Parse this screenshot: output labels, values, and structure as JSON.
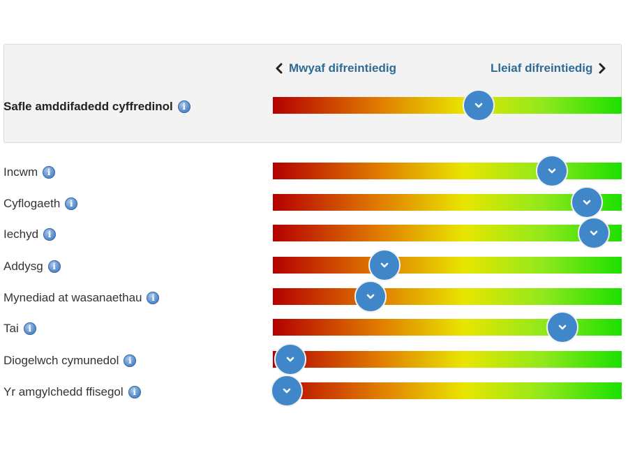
{
  "header": {
    "left_label": "Mwyaf difreintiedig",
    "right_label": "Lleiaf difreintiedig"
  },
  "overall": {
    "label": "Safle amddifadedd cyffredinol",
    "value": 0.59
  },
  "domains": [
    {
      "label": "Incwm",
      "value": 0.8
    },
    {
      "label": "Cyflogaeth",
      "value": 0.9
    },
    {
      "label": "Iechyd",
      "value": 0.92
    },
    {
      "label": "Addysg",
      "value": 0.32
    },
    {
      "label": "Mynediad at wasanaethau",
      "value": 0.28
    },
    {
      "label": "Tai",
      "value": 0.83
    },
    {
      "label": "Diogelwch cymunedol",
      "value": 0.05
    },
    {
      "label": "Yr amgylchedd ffisegol",
      "value": 0.04
    }
  ],
  "colors": {
    "knob": "#3f87c9",
    "heading_link": "#2e6b96",
    "bar_start": "#b40000",
    "bar_end": "#1cdf00"
  },
  "icons": {
    "info": "info-icon",
    "knob": "chevron-down-icon",
    "nav_left": "chevron-left-icon",
    "nav_right": "chevron-right-icon"
  }
}
